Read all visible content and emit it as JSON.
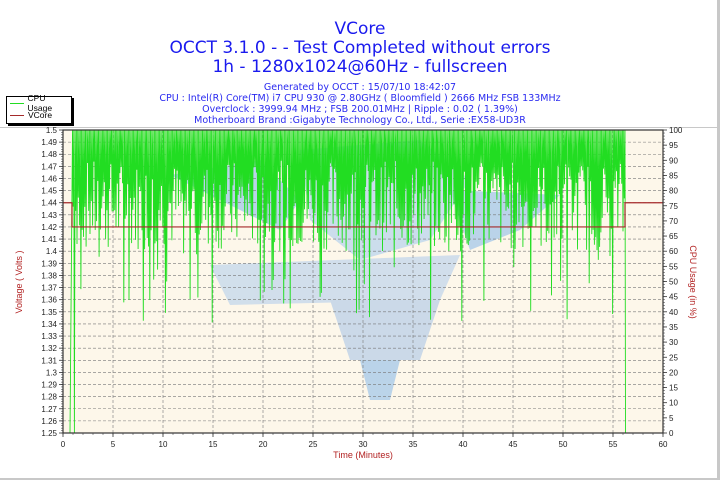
{
  "header": {
    "title": "VCore",
    "subtitle1": "OCCT 3.1.0 -  - Test Completed without errors",
    "subtitle2": "1h - 1280x1024@60Hz - fullscreen",
    "info": [
      "Generated by OCCT : 15/07/10 18:42:07",
      "CPU : Intel(R) Core(TM) i7 CPU 930 @ 2.80GHz ( Bloomfield ) 2666 MHz FSB 133MHz",
      "Overclock : 3999.94 MHz ; FSB 200.01MHz | Ripple : 0.02 ( 1.39%)",
      "Motherboard Brand :Gigabyte Technology Co., Ltd., Serie :EX58-UD3R"
    ]
  },
  "legend": {
    "items": [
      {
        "label": "CPU Usage",
        "color": "#22dd22"
      },
      {
        "label": "VCore",
        "color": "#a52a2a"
      }
    ]
  },
  "colors": {
    "title": "#1a1aee",
    "plot_bg": "#fdf7ea",
    "cpu_line": "#22dd22",
    "vcore_line": "#a52a2a",
    "axis_label": "#b22222"
  },
  "chart_data": {
    "type": "line",
    "title": "VCore",
    "xlabel": "Time (Minutes)",
    "ylabel": "Voltage ( Volts )",
    "y2label": "CPU Usage (in %)",
    "xlim": [
      0,
      60
    ],
    "ylim": [
      1.25,
      1.5
    ],
    "y2lim": [
      0,
      100
    ],
    "x_ticks": [
      0,
      5,
      10,
      15,
      20,
      25,
      30,
      35,
      40,
      45,
      50,
      55,
      60
    ],
    "y_ticks": [
      1.25,
      1.26,
      1.27,
      1.28,
      1.29,
      1.3,
      1.31,
      1.32,
      1.33,
      1.34,
      1.35,
      1.36,
      1.37,
      1.38,
      1.39,
      1.4,
      1.41,
      1.42,
      1.43,
      1.44,
      1.45,
      1.46,
      1.47,
      1.48,
      1.49,
      1.5
    ],
    "y2_ticks": [
      0,
      5,
      10,
      15,
      20,
      25,
      30,
      35,
      40,
      45,
      50,
      55,
      60,
      65,
      70,
      75,
      80,
      85,
      90,
      95,
      100
    ],
    "grid": true,
    "legend_position": "top-left",
    "series": [
      {
        "name": "VCore",
        "axis": "left",
        "x": [
          0,
          0.9,
          0.9,
          56.2,
          56.2,
          60
        ],
        "values": [
          1.44,
          1.44,
          1.42,
          1.42,
          1.44,
          1.44
        ]
      },
      {
        "name": "CPU Usage",
        "axis": "right",
        "x": [
          0,
          0.7,
          1.0,
          1.3,
          2.5,
          4.0,
          5.0,
          6.0,
          8.0,
          8.5,
          10.0,
          11.0,
          15.0,
          20.0,
          24.0,
          30.0,
          35.0,
          38.0,
          39.8,
          40.0,
          45.0,
          50.0,
          55.0,
          56.0,
          56.3,
          60.0
        ],
        "values": [
          0,
          0,
          98,
          88,
          70,
          55,
          35,
          60,
          55,
          65,
          70,
          72,
          65,
          70,
          65,
          60,
          75,
          65,
          60,
          37,
          70,
          70,
          75,
          100,
          0,
          0
        ]
      }
    ],
    "notes": "CPU Usage oscillates rapidly between ~60% and 100% from ~1 to ~56 minutes with occasional dips; drops to 0 before 1 min and after ~56.2 min. VCore steps from 1.44 V to 1.42 V during load and back to 1.44 V after."
  }
}
